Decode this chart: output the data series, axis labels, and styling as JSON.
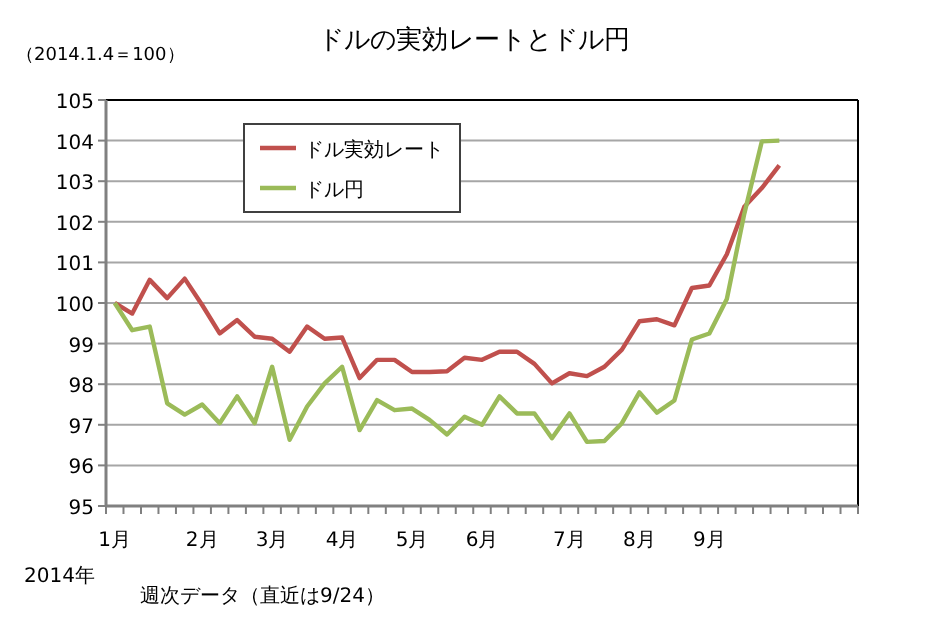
{
  "chart_data": {
    "type": "line",
    "title": "ドルの実効レートとドル円",
    "ylabel": "（2014.1.4＝100）",
    "categories": [
      "1月",
      null,
      null,
      null,
      null,
      "2月",
      null,
      null,
      null,
      "3月",
      null,
      null,
      null,
      "4月",
      null,
      null,
      null,
      "5月",
      null,
      null,
      null,
      "6月",
      null,
      null,
      null,
      null,
      "7月",
      null,
      null,
      null,
      "8月",
      null,
      null,
      null,
      "9月",
      null,
      null,
      null,
      null,
      null,
      null,
      null,
      null
    ],
    "series": [
      {
        "name": "ドル実効レート",
        "color": "#c0504d",
        "values": [
          100.0,
          99.74,
          100.57,
          100.12,
          100.6,
          99.95,
          99.25,
          99.58,
          99.17,
          99.12,
          98.8,
          99.42,
          99.12,
          99.15,
          98.15,
          98.6,
          98.6,
          98.3,
          98.3,
          98.32,
          98.65,
          98.6,
          98.8,
          98.8,
          98.5,
          98.02,
          98.27,
          98.2,
          98.43,
          98.85,
          99.55,
          99.6,
          99.45,
          100.37,
          100.43,
          101.2,
          102.37,
          102.83,
          103.39,
          null,
          null,
          null,
          null
        ]
      },
      {
        "name": "ドル円",
        "color": "#9bbb59",
        "values": [
          100.0,
          99.33,
          99.42,
          97.53,
          97.25,
          97.5,
          97.04,
          97.7,
          97.04,
          98.43,
          96.63,
          97.45,
          98.02,
          98.43,
          96.87,
          97.61,
          97.36,
          97.4,
          97.12,
          96.76,
          97.2,
          97.0,
          97.7,
          97.28,
          97.28,
          96.67,
          97.28,
          96.58,
          96.6,
          97.04,
          97.8,
          97.3,
          97.6,
          99.1,
          99.25,
          100.1,
          102.2,
          103.98,
          104.0,
          null,
          null,
          null,
          null
        ]
      }
    ],
    "ylim": [
      95,
      105
    ],
    "yticks": [
      95,
      96,
      97,
      98,
      99,
      100,
      101,
      102,
      103,
      104,
      105
    ],
    "grid": "y",
    "legend": "top left",
    "line_style": "solid",
    "marker": "none",
    "annotations": [
      "2014年",
      "週次データ（直近は9/24）"
    ]
  }
}
